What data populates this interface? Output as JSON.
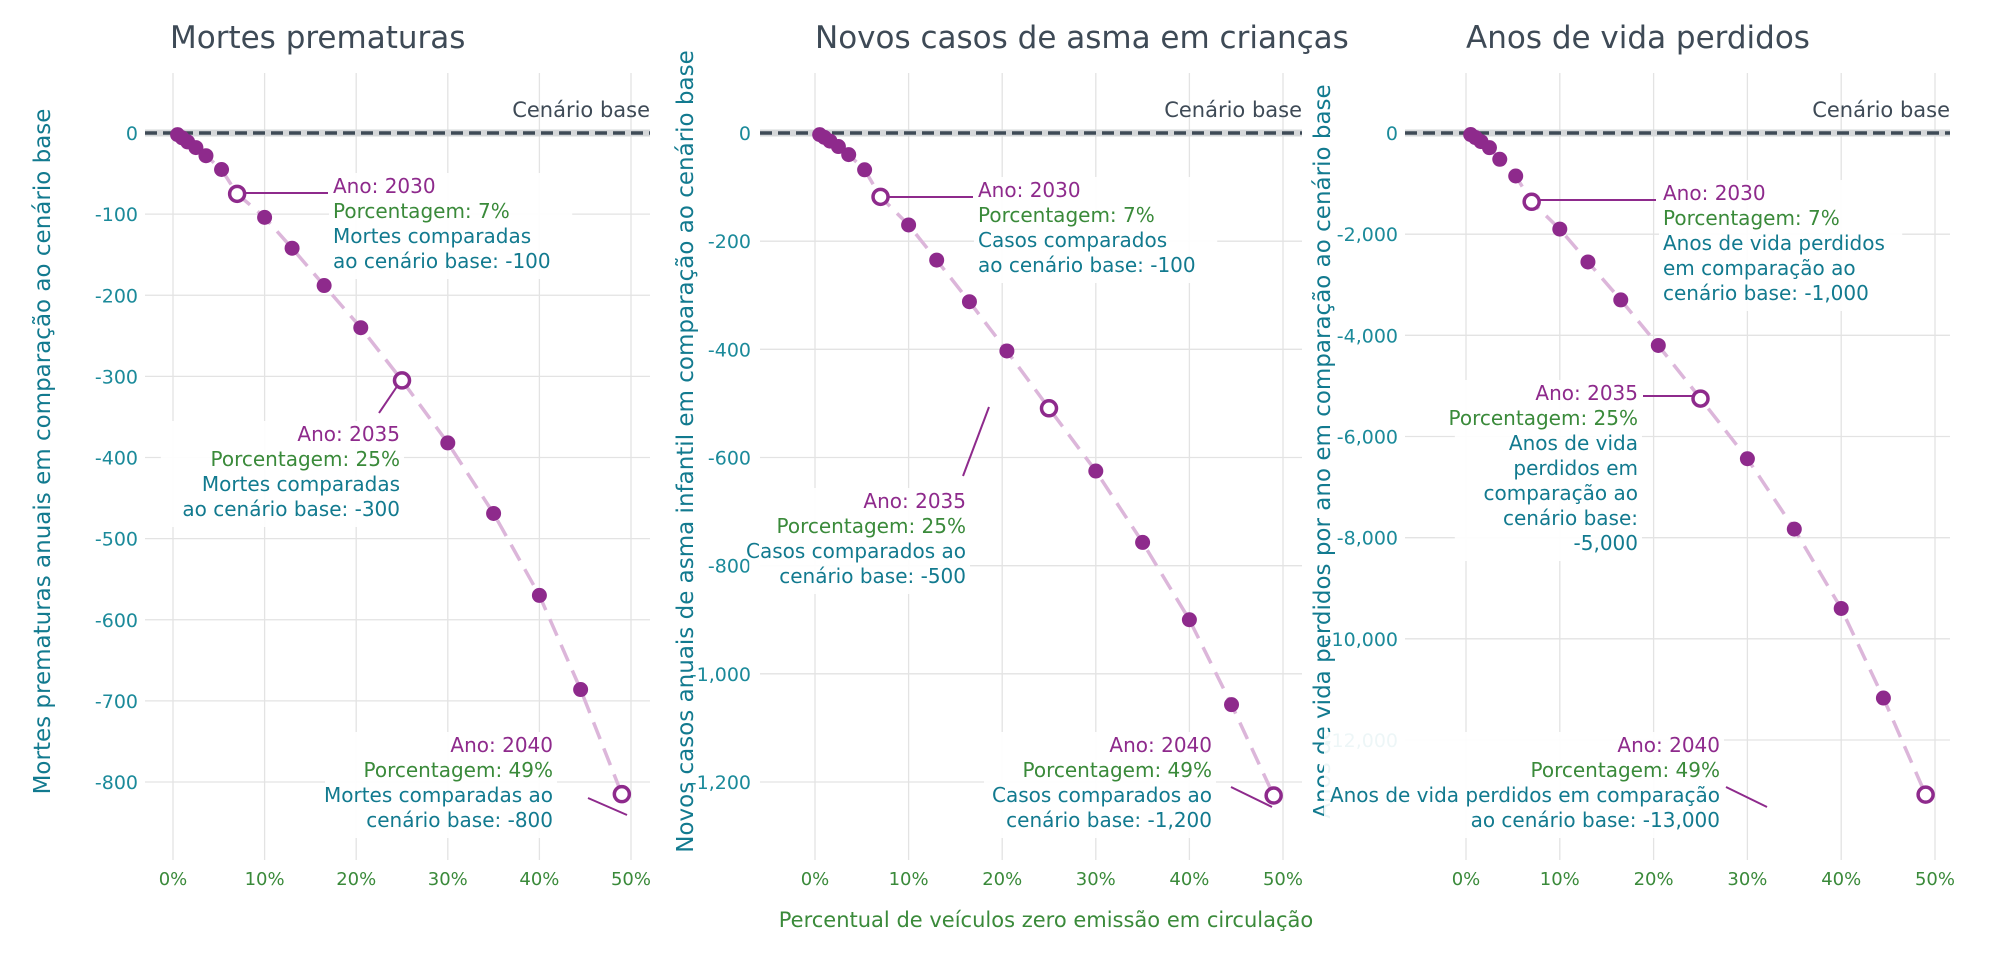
{
  "chart_data": {
    "type": "scatter",
    "shared_xlabel": "Percentual de veículos zero emissão em circulação",
    "baseline_label": "Cenário base",
    "colors": {
      "points": "#8e2a8c",
      "trend_line": "#dcb6da",
      "baseline": "#3e4a56",
      "year_text": "#8e2a8c",
      "percent_text": "#3a8a3a",
      "value_text": "#127a8f",
      "title": "#3e4a56"
    },
    "panels": [
      {
        "title": "Mortes prematuras",
        "ylabel": "Mortes prematuras anuais em comparação ao cenário base",
        "xlim": [
          0,
          50
        ],
        "ylim": [
          -860,
          60
        ],
        "x_ticks": [
          0,
          10,
          20,
          30,
          40,
          50
        ],
        "x_tick_labels": [
          "0%",
          "10%",
          "20%",
          "30%",
          "40%",
          "50%"
        ],
        "y_ticks": [
          0,
          -100,
          -200,
          -300,
          -400,
          -500,
          -600,
          -700,
          -800
        ],
        "y_tick_labels": [
          "0",
          "-100",
          "-200",
          "-300",
          "-400",
          "-500",
          "-600",
          "-700",
          "-800"
        ],
        "x": [
          0.5,
          1.0,
          1.6,
          2.5,
          3.6,
          5.3,
          7,
          10,
          13,
          16.5,
          20.5,
          25,
          30,
          35,
          40,
          44.5,
          49
        ],
        "y": [
          -2,
          -6,
          -11,
          -18,
          -28,
          -45,
          -75,
          -104,
          -142,
          -188,
          -240,
          -305,
          -382,
          -469,
          -570,
          -686,
          -815
        ],
        "highlighted_indices": [
          6,
          11,
          16
        ],
        "annotations": [
          {
            "year": "Ano: 2030",
            "percent": "Porcentagem: 7%",
            "value_lines": [
              "Mortes comparadas",
              "ao cenário base: -100"
            ]
          },
          {
            "year": "Ano: 2035",
            "percent": "Porcentagem: 25%",
            "value_lines": [
              "Mortes comparadas",
              "ao cenário base: -300"
            ]
          },
          {
            "year": "Ano: 2040",
            "percent": "Porcentagem: 49%",
            "value_lines": [
              "Mortes comparadas ao",
              "cenário base: -800"
            ]
          }
        ]
      },
      {
        "title": "Novos casos de asma em crianças",
        "ylabel": "Novos casos anuais de asma infantil em comparação ao cenário base",
        "xlim": [
          0,
          50
        ],
        "ylim": [
          -1290,
          90
        ],
        "x_ticks": [
          0,
          10,
          20,
          30,
          40,
          50
        ],
        "x_tick_labels": [
          "0%",
          "10%",
          "20%",
          "30%",
          "40%",
          "50%"
        ],
        "y_ticks": [
          0,
          -200,
          -400,
          -600,
          -800,
          -1000,
          -1200
        ],
        "y_tick_labels": [
          "0",
          "-200",
          "-400",
          "-600",
          "-800",
          "-1,000",
          "-1,200"
        ],
        "x": [
          0.5,
          1.0,
          1.6,
          2.5,
          3.6,
          5.3,
          7,
          10,
          13,
          16.5,
          20.5,
          25,
          30,
          35,
          40,
          44.5,
          49
        ],
        "y": [
          -3,
          -8,
          -15,
          -25,
          -40,
          -68,
          -118,
          -170,
          -235,
          -312,
          -403,
          -509,
          -625,
          -757,
          -900,
          -1057,
          -1225
        ],
        "highlighted_indices": [
          6,
          11,
          16
        ],
        "annotations": [
          {
            "year": "Ano: 2030",
            "percent": "Porcentagem: 7%",
            "value_lines": [
              "Casos comparados",
              "ao cenário base: -100"
            ]
          },
          {
            "year": "Ano: 2035",
            "percent": "Porcentagem: 25%",
            "value_lines": [
              "Casos comparados ao",
              "cenário base: -500"
            ]
          },
          {
            "year": "Ano: 2040",
            "percent": "Porcentagem: 49%",
            "value_lines": [
              "Casos comparados ao",
              "cenário base: -1,200"
            ]
          }
        ]
      },
      {
        "title": "Anos de vida perdidos",
        "ylabel": "Anos de vida perdidos por ano em comparação ao cenário base",
        "xlim": [
          0,
          50
        ],
        "ylim": [
          -13400,
          1000
        ],
        "x_ticks": [
          0,
          10,
          20,
          30,
          40,
          50
        ],
        "x_tick_labels": [
          "0%",
          "10%",
          "20%",
          "30%",
          "40%",
          "50%"
        ],
        "y_ticks": [
          0,
          -2000,
          -4000,
          -6000,
          -8000,
          -10000,
          -12000
        ],
        "y_tick_labels": [
          "0",
          "-2,000",
          "-4,000",
          "-6,000",
          "-8,000",
          "-10,000",
          "-12,000"
        ],
        "x": [
          0.5,
          1.0,
          1.6,
          2.5,
          3.6,
          5.3,
          7,
          10,
          13,
          16.5,
          20.5,
          25,
          30,
          35,
          40,
          44.5,
          49
        ],
        "y": [
          -30,
          -90,
          -170,
          -290,
          -520,
          -850,
          -1360,
          -1900,
          -2550,
          -3300,
          -4200,
          -5250,
          -6440,
          -7830,
          -9400,
          -11170,
          -13080
        ],
        "highlighted_indices": [
          6,
          11,
          16
        ],
        "annotations": [
          {
            "year": "Ano: 2030",
            "percent": "Porcentagem: 7%",
            "value_lines": [
              "Anos de vida perdidos",
              "em comparação ao",
              "cenário base: -1,000"
            ]
          },
          {
            "year": "Ano: 2035",
            "percent": "Porcentagem: 25%",
            "value_lines": [
              "Anos de vida",
              "perdidos em",
              "comparação ao",
              "cenário base:",
              "-5,000"
            ]
          },
          {
            "year": "Ano: 2040",
            "percent": "Porcentagem: 49%",
            "value_lines": [
              "Anos de vida perdidos em comparação",
              "ao cenário base: -13,000"
            ]
          }
        ]
      }
    ]
  }
}
